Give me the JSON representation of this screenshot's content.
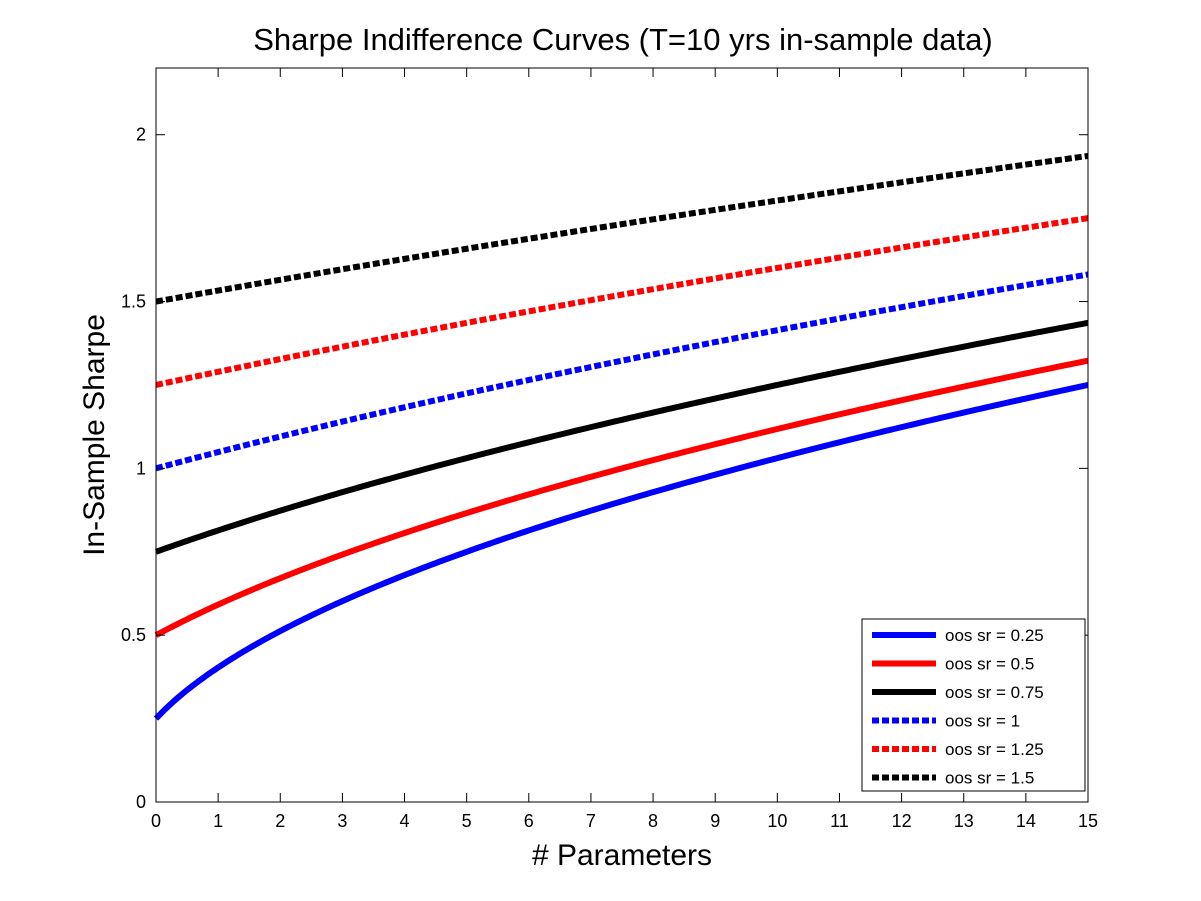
{
  "chart_data": {
    "type": "line",
    "title": "Sharpe Indifference Curves (T=10 yrs in-sample data)",
    "xlabel": "# Parameters",
    "ylabel": "In-Sample Sharpe",
    "xlim": [
      0,
      15
    ],
    "ylim": [
      0,
      2.2
    ],
    "xticks": [
      0,
      1,
      2,
      3,
      4,
      5,
      6,
      7,
      8,
      9,
      10,
      11,
      12,
      13,
      14,
      15
    ],
    "yticks": [
      0,
      0.5,
      1,
      1.5,
      2
    ],
    "ytick_labels": [
      "0",
      "0.5",
      "1",
      "1.5",
      "2"
    ],
    "in_sample_years": 10,
    "legend_position": "bottom-right",
    "grid": false,
    "series": [
      {
        "name": "oos sr = 0.25",
        "oos_sr": 0.25,
        "color": "#0000ff",
        "style": "solid"
      },
      {
        "name": "oos sr = 0.5",
        "oos_sr": 0.5,
        "color": "#ff0000",
        "style": "solid"
      },
      {
        "name": "oos sr = 0.75",
        "oos_sr": 0.75,
        "color": "#000000",
        "style": "solid"
      },
      {
        "name": "oos sr = 1",
        "oos_sr": 1,
        "color": "#0000ff",
        "style": "dashed"
      },
      {
        "name": "oos sr = 1.25",
        "oos_sr": 1.25,
        "color": "#ff0000",
        "style": "dashed"
      },
      {
        "name": "oos sr = 1.5",
        "oos_sr": 1.5,
        "color": "#000000",
        "style": "dashed"
      }
    ]
  }
}
